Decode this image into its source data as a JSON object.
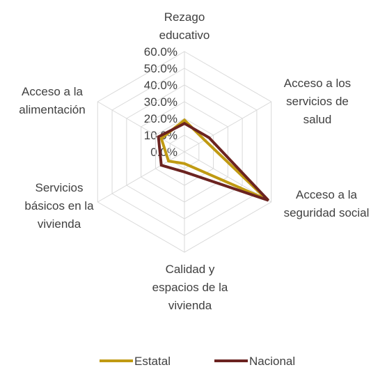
{
  "chart_data": {
    "type": "radar",
    "categories": [
      [
        "Rezago",
        "educativo"
      ],
      [
        "Acceso a los",
        "servicios de",
        "salud"
      ],
      [
        "Acceso a la",
        "seguridad social"
      ],
      [
        "Calidad y",
        "espacios de la",
        "vivienda"
      ],
      [
        "Servicios",
        "básicos en la",
        "vivienda"
      ],
      [
        "Acceso a la",
        "alimentación"
      ]
    ],
    "series": [
      {
        "name": "Estatal",
        "color": "#c09a12",
        "values": [
          19,
          14,
          57,
          7,
          11,
          16
        ]
      },
      {
        "name": "Nacional",
        "color": "#6b2320",
        "values": [
          17,
          17,
          58,
          12,
          16,
          18
        ]
      }
    ],
    "ylim": [
      0,
      60
    ],
    "yticks": [
      {
        "value": 0,
        "label": "0.0%"
      },
      {
        "value": 10,
        "label": "10.0%"
      },
      {
        "value": 20,
        "label": "20.0%"
      },
      {
        "value": 30,
        "label": "30.0%"
      },
      {
        "value": 40,
        "label": "40.0%"
      },
      {
        "value": 50,
        "label": "50.0%"
      },
      {
        "value": 60,
        "label": "60.0%"
      }
    ],
    "grid": true,
    "legend": "bottom"
  }
}
